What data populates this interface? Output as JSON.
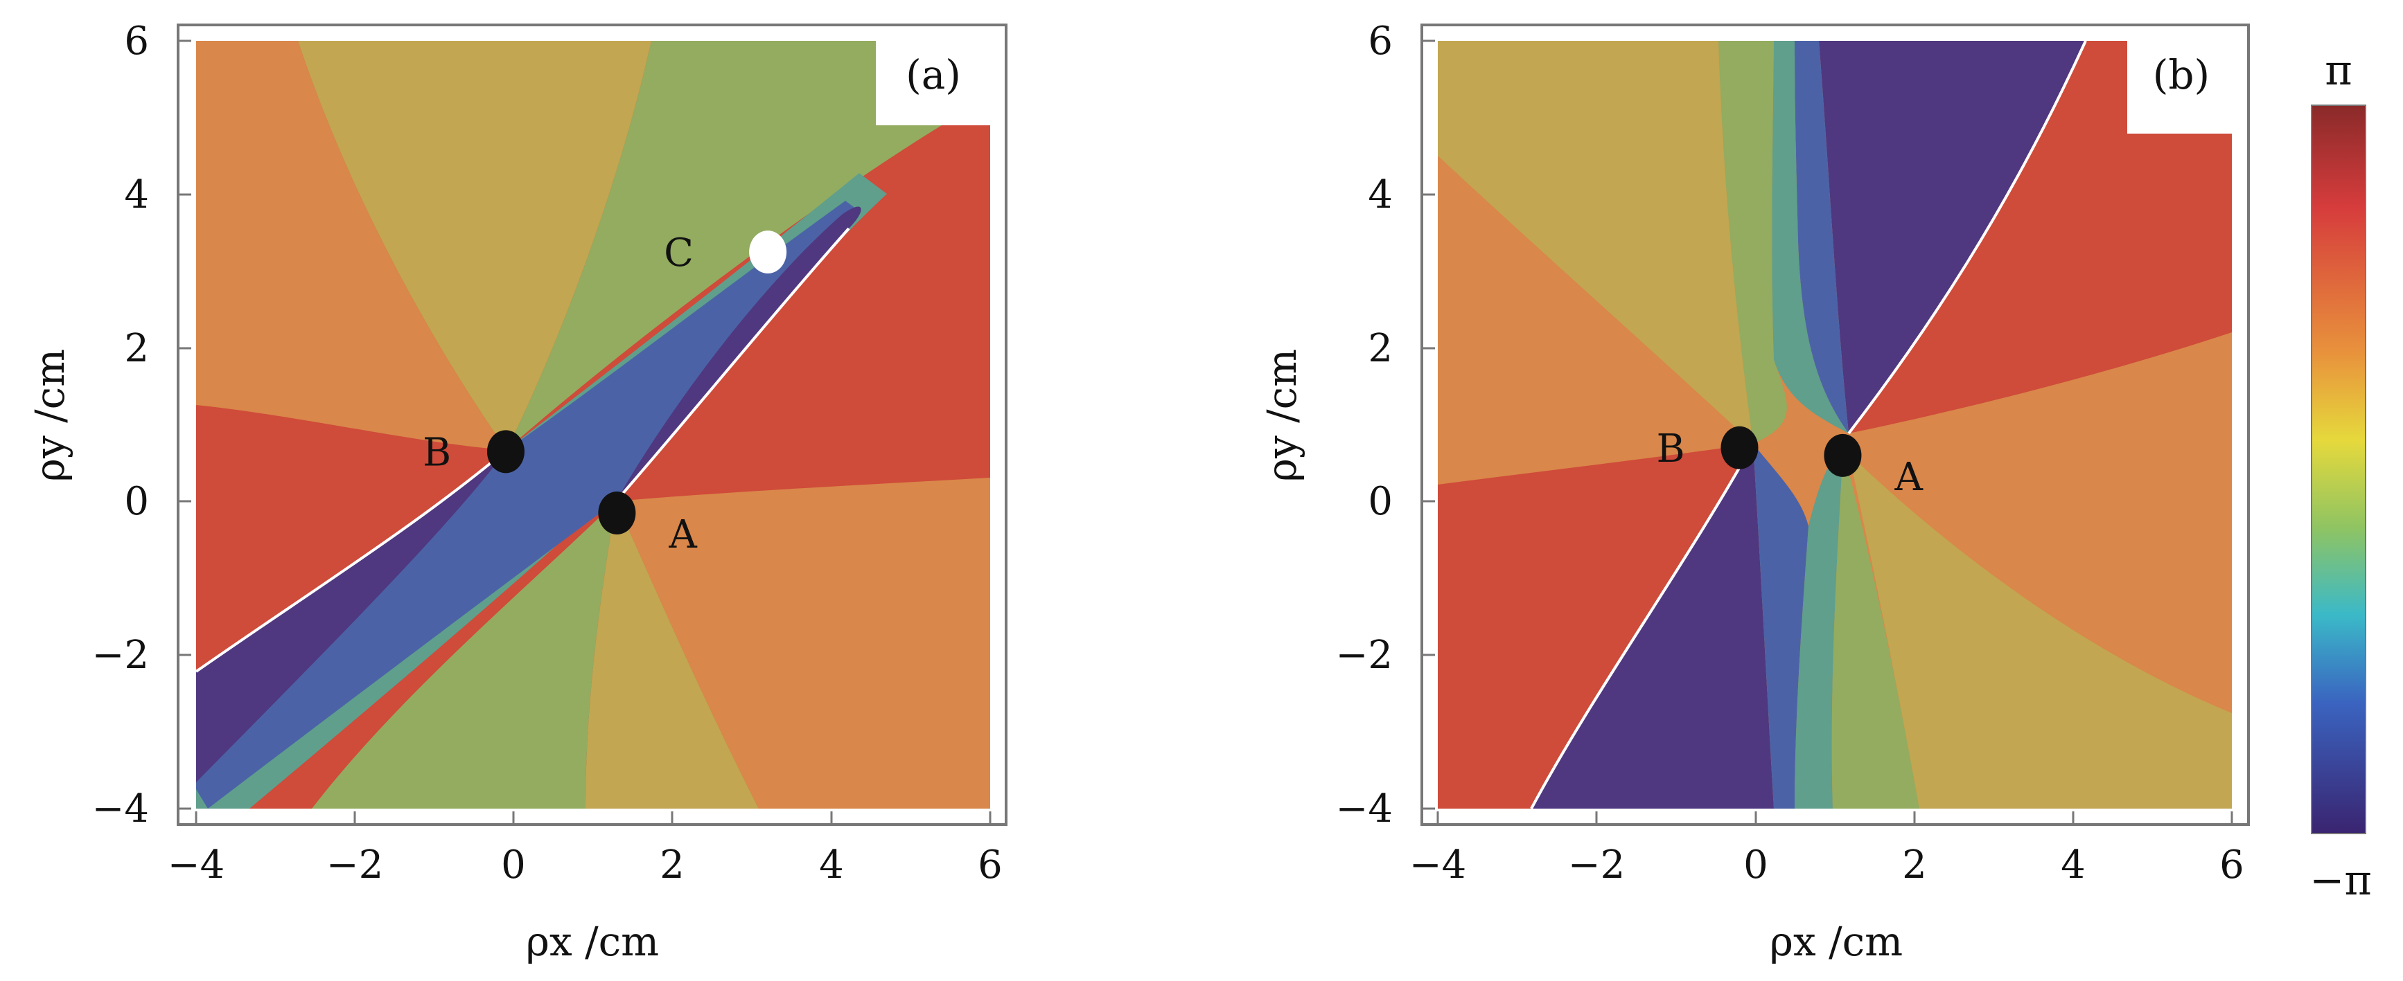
{
  "colors": {
    "red": "#cf4b3a",
    "orange": "#d9874a",
    "olive": "#c2a651",
    "green": "#93ac60",
    "teal": "#5f9f8c",
    "blue": "#4b63a6",
    "purple": "#4f3880",
    "white": "#ffffff",
    "point": "#111111",
    "frame": "#777777"
  },
  "chart_data": [
    {
      "type": "heatmap",
      "panel_label": "(a)",
      "title": "",
      "xlabel": "ρx /cm",
      "ylabel": "ρy /cm",
      "xlim": [
        -4,
        6
      ],
      "ylim": [
        -4,
        6
      ],
      "x_ticks": [
        "−4",
        "−2",
        "0",
        "2",
        "4",
        "6"
      ],
      "y_ticks": [
        "−4",
        "−2",
        "0",
        "2",
        "4",
        "6"
      ],
      "quantity": "phase",
      "phase_range": [
        "−π",
        "π"
      ],
      "singular_points": [
        {
          "label": "A",
          "x": 1.3,
          "y": -0.15,
          "marker": "black"
        },
        {
          "label": "B",
          "x": -0.1,
          "y": 0.65,
          "marker": "black"
        },
        {
          "label": "C",
          "x": 3.2,
          "y": 3.25,
          "marker": "white"
        }
      ]
    },
    {
      "type": "heatmap",
      "panel_label": "(b)",
      "title": "",
      "xlabel": "ρx /cm",
      "ylabel": "ρy /cm",
      "xlim": [
        -4,
        6
      ],
      "ylim": [
        -4,
        6
      ],
      "x_ticks": [
        "−4",
        "−2",
        "0",
        "2",
        "4",
        "6"
      ],
      "y_ticks": [
        "−4",
        "−2",
        "0",
        "2",
        "4",
        "6"
      ],
      "quantity": "phase",
      "phase_range": [
        "−π",
        "π"
      ],
      "singular_points": [
        {
          "label": "A",
          "x": 1.1,
          "y": 0.6,
          "marker": "black"
        },
        {
          "label": "B",
          "x": -0.2,
          "y": 0.7,
          "marker": "black"
        }
      ]
    }
  ],
  "colorbar": {
    "max_label": "π",
    "min_label": "−π",
    "stops": [
      "#8a2a2a",
      "#d63c3c",
      "#e8923c",
      "#e6d93c",
      "#8fc462",
      "#3bb9c8",
      "#3a64c0",
      "#3a2470"
    ]
  }
}
